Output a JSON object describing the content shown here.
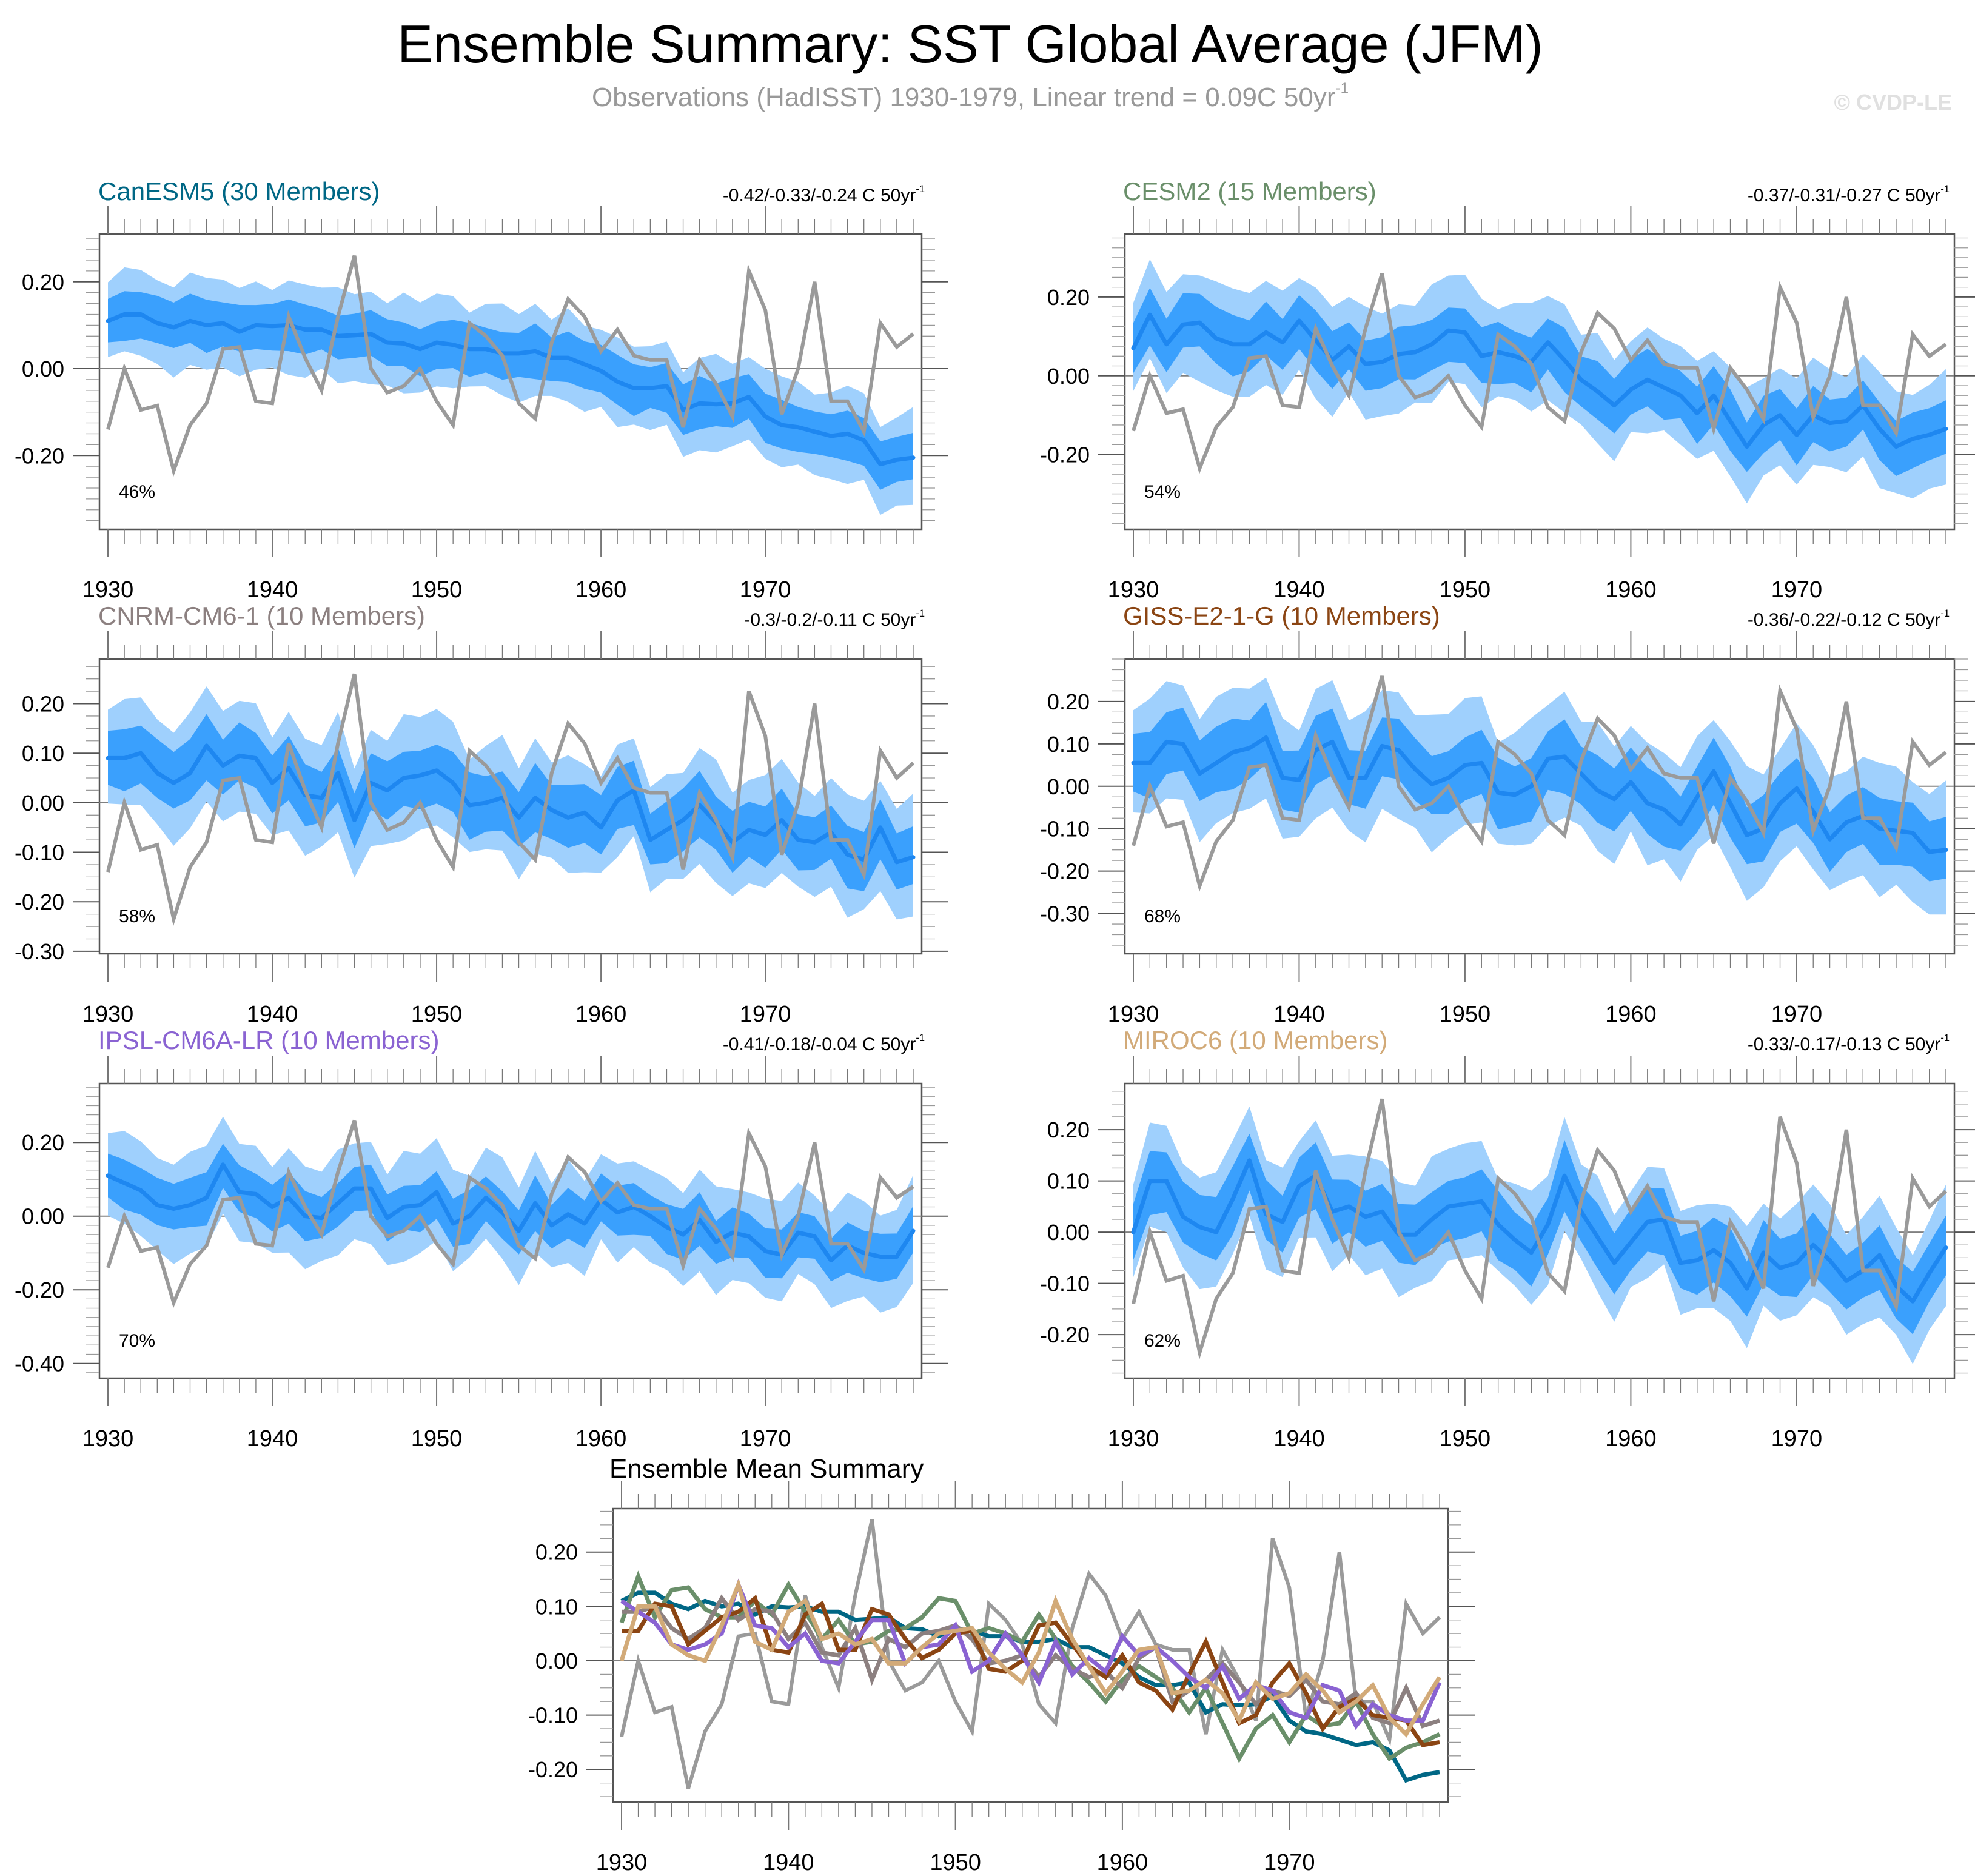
{
  "header": {
    "title": "Ensemble Summary: SST Global Average (JFM)",
    "subtitle_main": "Observations (HadISST) 1930-1979, Linear trend = 0.09C 50yr",
    "subtitle_sup": "-1",
    "watermark": "© CVDP-LE"
  },
  "colors": {
    "outer_band": "#9fd0fd",
    "inner_band": "#3aa0fd",
    "ens_mean": "#1e87f0",
    "obs": "#9a9a9a",
    "zero_line": "#808080"
  },
  "chart_data": {
    "type": "line",
    "x": [
      1930,
      1931,
      1932,
      1933,
      1934,
      1935,
      1936,
      1937,
      1938,
      1939,
      1940,
      1941,
      1942,
      1943,
      1944,
      1945,
      1946,
      1947,
      1948,
      1949,
      1950,
      1951,
      1952,
      1953,
      1954,
      1955,
      1956,
      1957,
      1958,
      1959,
      1960,
      1961,
      1962,
      1963,
      1964,
      1965,
      1966,
      1967,
      1968,
      1969,
      1970,
      1971,
      1972,
      1973,
      1974,
      1975,
      1976,
      1977,
      1978,
      1979
    ],
    "xticks": [
      1930,
      1940,
      1950,
      1960,
      1970
    ],
    "observations": {
      "name": "Observations (HadISST)",
      "color": "#9a9a9a",
      "values": [
        -0.14,
        0.0,
        -0.095,
        -0.085,
        -0.235,
        -0.13,
        -0.08,
        0.045,
        0.05,
        -0.075,
        -0.08,
        0.12,
        0.025,
        -0.05,
        0.12,
        0.26,
        0.0,
        -0.055,
        -0.04,
        0.0,
        -0.075,
        -0.13,
        0.105,
        0.075,
        0.03,
        -0.08,
        -0.115,
        0.06,
        0.16,
        0.12,
        0.04,
        0.09,
        0.03,
        0.02,
        0.02,
        -0.135,
        0.02,
        -0.035,
        -0.11,
        0.225,
        0.135,
        -0.105,
        0.0,
        0.2,
        -0.075,
        -0.075,
        -0.145,
        0.105,
        0.05,
        0.08
      ]
    },
    "panels": [
      {
        "id": "canesm5",
        "title": "CanESM5 (30 Members)",
        "color": "#006785",
        "trend_text": "-0.42/-0.33/-0.24 C 50yr",
        "trend_sup": "-1",
        "percent": "46%",
        "ylim": [
          -0.37,
          0.31
        ],
        "yticks": [
          {
            "v": 0.2,
            "label": "0.20"
          },
          {
            "v": 0.0,
            "label": "0.00"
          },
          {
            "v": -0.2,
            "label": "-0.20"
          }
        ],
        "mean": [
          0.11,
          0.125,
          0.125,
          0.105,
          0.095,
          0.11,
          0.1,
          0.105,
          0.085,
          0.1,
          0.098,
          0.1,
          0.09,
          0.09,
          0.075,
          0.077,
          0.08,
          0.06,
          0.058,
          0.045,
          0.06,
          0.055,
          0.045,
          0.045,
          0.035,
          0.035,
          0.04,
          0.025,
          0.025,
          0.01,
          -0.005,
          -0.03,
          -0.045,
          -0.045,
          -0.04,
          -0.095,
          -0.08,
          -0.082,
          -0.08,
          -0.065,
          -0.11,
          -0.13,
          -0.135,
          -0.145,
          -0.155,
          -0.15,
          -0.165,
          -0.22,
          -0.21,
          -0.205
        ],
        "inner_spread": 0.055,
        "outer_spread": 0.1
      },
      {
        "id": "cesm2",
        "title": "CESM2 (15 Members)",
        "color": "#6a8f6a",
        "trend_text": "-0.37/-0.31/-0.27 C 50yr",
        "trend_sup": "-1",
        "percent": "54%",
        "ylim": [
          -0.39,
          0.36
        ],
        "yticks": [
          {
            "v": 0.2,
            "label": "0.20"
          },
          {
            "v": 0.0,
            "label": "0.00"
          },
          {
            "v": -0.2,
            "label": "-0.20"
          }
        ],
        "mean": [
          0.07,
          0.155,
          0.08,
          0.13,
          0.135,
          0.095,
          0.08,
          0.08,
          0.11,
          0.085,
          0.14,
          0.09,
          0.04,
          0.075,
          0.03,
          0.035,
          0.055,
          0.06,
          0.08,
          0.115,
          0.11,
          0.05,
          0.06,
          0.05,
          0.035,
          0.085,
          0.04,
          -0.01,
          -0.04,
          -0.075,
          -0.035,
          -0.01,
          -0.03,
          -0.05,
          -0.095,
          -0.05,
          -0.115,
          -0.18,
          -0.125,
          -0.1,
          -0.15,
          -0.1,
          -0.12,
          -0.115,
          -0.075,
          -0.135,
          -0.18,
          -0.16,
          -0.15,
          -0.135
        ],
        "inner_spread": 0.07,
        "outer_spread": 0.13
      },
      {
        "id": "cnrm",
        "title": "CNRM-CM6-1 (10 Members)",
        "color": "#8c8080",
        "trend_text": "-0.3/-0.2/-0.11 C 50yr",
        "trend_sup": "-1",
        "percent": "58%",
        "ylim": [
          -0.305,
          0.29
        ],
        "yticks": [
          {
            "v": 0.2,
            "label": "0.20"
          },
          {
            "v": 0.1,
            "label": "0.10"
          },
          {
            "v": 0.0,
            "label": "0.00"
          },
          {
            "v": -0.1,
            "label": "-0.10"
          },
          {
            "v": -0.2,
            "label": "-0.20"
          },
          {
            "v": -0.3,
            "label": "-0.30"
          }
        ],
        "mean": [
          0.09,
          0.09,
          0.1,
          0.06,
          0.04,
          0.06,
          0.115,
          0.075,
          0.095,
          0.09,
          0.04,
          0.07,
          0.015,
          0.01,
          0.06,
          -0.035,
          0.04,
          0.025,
          0.05,
          0.055,
          0.065,
          0.04,
          -0.005,
          0.0,
          0.01,
          -0.03,
          0.01,
          -0.015,
          -0.03,
          -0.02,
          -0.05,
          0.005,
          0.025,
          -0.075,
          -0.055,
          -0.035,
          -0.005,
          -0.04,
          -0.08,
          -0.055,
          -0.065,
          -0.035,
          -0.075,
          -0.08,
          -0.06,
          -0.105,
          -0.115,
          -0.05,
          -0.12,
          -0.11
        ],
        "inner_spread": 0.06,
        "outer_spread": 0.11
      },
      {
        "id": "giss",
        "title": "GISS-E2-1-G (10 Members)",
        "color": "#8b4513",
        "trend_text": "-0.36/-0.22/-0.12 C 50yr",
        "trend_sup": "-1",
        "percent": "68%",
        "ylim": [
          -0.395,
          0.3
        ],
        "yticks": [
          {
            "v": 0.2,
            "label": "0.20"
          },
          {
            "v": 0.1,
            "label": "0.10"
          },
          {
            "v": 0.0,
            "label": "0.00"
          },
          {
            "v": -0.1,
            "label": "-0.10"
          },
          {
            "v": -0.2,
            "label": "-0.20"
          },
          {
            "v": -0.3,
            "label": "-0.30"
          }
        ],
        "mean": [
          0.055,
          0.055,
          0.105,
          0.1,
          0.03,
          0.055,
          0.08,
          0.09,
          0.115,
          0.02,
          0.015,
          0.085,
          0.105,
          0.02,
          0.02,
          0.095,
          0.085,
          0.04,
          0.005,
          0.02,
          0.05,
          0.055,
          -0.015,
          -0.02,
          0.0,
          0.065,
          0.07,
          0.03,
          -0.01,
          -0.03,
          0.01,
          -0.04,
          -0.055,
          -0.09,
          -0.025,
          0.035,
          -0.04,
          -0.115,
          -0.1,
          -0.04,
          -0.005,
          -0.06,
          -0.125,
          -0.085,
          -0.07,
          -0.1,
          -0.105,
          -0.11,
          -0.155,
          -0.15
        ],
        "inner_spread": 0.075,
        "outer_spread": 0.14
      },
      {
        "id": "ipsl",
        "title": "IPSL-CM6A-LR (10 Members)",
        "color": "#8a63d2",
        "trend_text": "-0.41/-0.18/-0.04 C 50yr",
        "trend_sup": "-1",
        "percent": "70%",
        "ylim": [
          -0.44,
          0.36
        ],
        "yticks": [
          {
            "v": 0.2,
            "label": "0.20"
          },
          {
            "v": 0.0,
            "label": "0.00"
          },
          {
            "v": -0.2,
            "label": "-0.20"
          },
          {
            "v": -0.4,
            "label": "-0.40"
          }
        ],
        "mean": [
          0.11,
          0.09,
          0.07,
          0.03,
          0.02,
          0.03,
          0.05,
          0.14,
          0.065,
          0.06,
          0.025,
          0.05,
          0.0,
          -0.005,
          0.035,
          0.075,
          0.075,
          -0.005,
          0.025,
          0.03,
          0.065,
          -0.02,
          0.0,
          0.05,
          0.01,
          -0.04,
          0.035,
          -0.025,
          0.005,
          -0.02,
          0.045,
          0.01,
          0.025,
          0.0,
          -0.03,
          -0.05,
          -0.01,
          -0.07,
          -0.045,
          -0.055,
          -0.095,
          -0.105,
          -0.045,
          -0.055,
          -0.12,
          -0.08,
          -0.1,
          -0.11,
          -0.11,
          -0.04
        ],
        "inner_spread": 0.065,
        "outer_spread": 0.13
      },
      {
        "id": "miroc6",
        "title": "MIROC6 (10 Members)",
        "color": "#d2aa78",
        "trend_text": "-0.33/-0.17/-0.13 C 50yr",
        "trend_sup": "-1",
        "percent": "62%",
        "ylim": [
          -0.285,
          0.29
        ],
        "yticks": [
          {
            "v": 0.2,
            "label": "0.20"
          },
          {
            "v": 0.1,
            "label": "0.10"
          },
          {
            "v": 0.0,
            "label": "0.00"
          },
          {
            "v": -0.1,
            "label": "-0.10"
          },
          {
            "v": -0.2,
            "label": "-0.20"
          }
        ],
        "mean": [
          0.0,
          0.1,
          0.1,
          0.03,
          0.01,
          0.0,
          0.065,
          0.14,
          0.035,
          0.02,
          0.09,
          0.11,
          0.04,
          0.05,
          0.03,
          0.04,
          -0.005,
          -0.005,
          0.025,
          0.05,
          0.055,
          0.06,
          0.015,
          -0.015,
          -0.04,
          0.015,
          0.11,
          0.04,
          -0.01,
          -0.06,
          -0.02,
          0.02,
          0.025,
          -0.06,
          -0.055,
          -0.035,
          -0.06,
          -0.11,
          -0.04,
          -0.07,
          -0.06,
          -0.025,
          -0.055,
          -0.095,
          -0.075,
          -0.045,
          -0.105,
          -0.135,
          -0.08,
          -0.03
        ],
        "inner_spread": 0.06,
        "outer_spread": 0.105
      }
    ],
    "summary": {
      "title": "Ensemble Mean Summary",
      "ylim": [
        -0.26,
        0.28
      ],
      "yticks": [
        {
          "v": 0.2,
          "label": "0.20"
        },
        {
          "v": 0.1,
          "label": "0.10"
        },
        {
          "v": 0.0,
          "label": "0.00"
        },
        {
          "v": -0.1,
          "label": "-0.10"
        },
        {
          "v": -0.2,
          "label": "-0.20"
        }
      ]
    }
  }
}
